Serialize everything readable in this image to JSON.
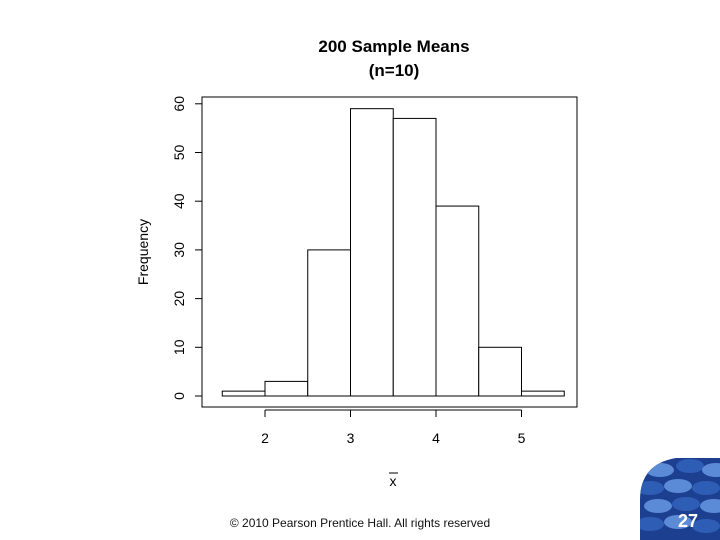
{
  "chart_data": {
    "type": "bar",
    "title": "200 Sample Means",
    "subtitle": "(n=10)",
    "xlabel": "x",
    "ylabel": "Frequency",
    "bins": [
      {
        "from": 1.5,
        "to": 2.0,
        "value": 1
      },
      {
        "from": 2.0,
        "to": 2.5,
        "value": 3
      },
      {
        "from": 2.5,
        "to": 3.0,
        "value": 30
      },
      {
        "from": 3.0,
        "to": 3.5,
        "value": 59
      },
      {
        "from": 3.5,
        "to": 4.0,
        "value": 57
      },
      {
        "from": 4.0,
        "to": 4.5,
        "value": 39
      },
      {
        "from": 4.5,
        "to": 5.0,
        "value": 10
      },
      {
        "from": 5.0,
        "to": 5.5,
        "value": 1
      }
    ],
    "xticks": [
      "2",
      "3",
      "4",
      "5"
    ],
    "yticks": [
      "0",
      "10",
      "20",
      "30",
      "40",
      "50",
      "60"
    ],
    "xlim": [
      1.5,
      5.5
    ],
    "ylim": [
      0,
      60
    ],
    "grid": false
  },
  "footer": {
    "copyright": "© 2010 Pearson Prentice Hall. All rights reserved"
  },
  "page_number": "27",
  "colors": {
    "badge_dark": "#1c3f8f",
    "badge_mid": "#2e5db5",
    "badge_light": "#5b8ad6"
  }
}
